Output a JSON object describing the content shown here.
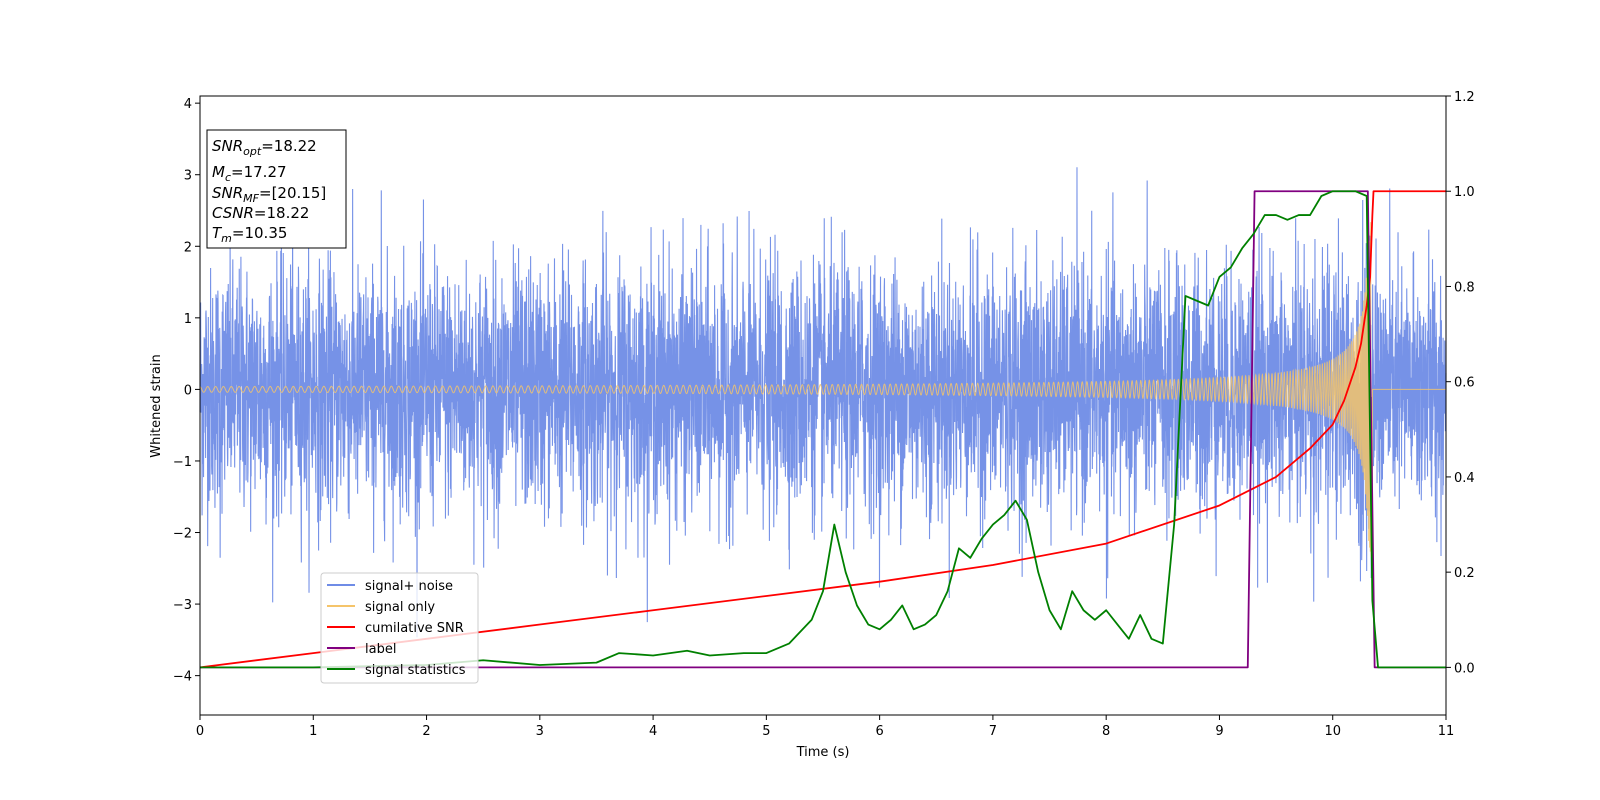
{
  "chart_data": {
    "type": "line",
    "title": "",
    "xlabel": "Time (s)",
    "ylabel": "Whitened strain",
    "xlim": [
      0,
      11
    ],
    "ylim": [
      -4.55,
      4.1
    ],
    "y2lim": [
      -0.1,
      1.2
    ],
    "x_ticks": [
      0,
      1,
      2,
      3,
      4,
      5,
      6,
      7,
      8,
      9,
      10,
      11
    ],
    "y_ticks": [
      -4,
      -3,
      -2,
      -1,
      0,
      1,
      2,
      3,
      4
    ],
    "y2_ticks": [
      0.0,
      0.2,
      0.4,
      0.6,
      0.8,
      1.0,
      1.2
    ],
    "grid": false,
    "legend_placement": "lower-left",
    "series": [
      {
        "name": "signal+ noise",
        "axis": "left",
        "color": "#6f8ce6",
        "kind": "noise",
        "std": 0.85,
        "tail_level": 2.1
      },
      {
        "name": "signal only",
        "axis": "left",
        "color": "#f5c46a",
        "kind": "chirp",
        "merger_time": 10.35,
        "end_amplitude": 1.6
      },
      {
        "name": "cumilative SNR",
        "axis": "right",
        "color": "#ff0000",
        "x": [
          0,
          1,
          2,
          3,
          4,
          5,
          6,
          7,
          8,
          9,
          9.5,
          9.8,
          10.0,
          10.1,
          10.2,
          10.25,
          10.3,
          10.33,
          10.35,
          10.36,
          11
        ],
        "y": [
          0.0,
          0.03,
          0.06,
          0.09,
          0.12,
          0.15,
          0.18,
          0.215,
          0.26,
          0.34,
          0.4,
          0.46,
          0.51,
          0.56,
          0.63,
          0.68,
          0.76,
          0.82,
          0.95,
          1.0,
          1.0
        ]
      },
      {
        "name": "label",
        "axis": "right",
        "color": "#800080",
        "x": [
          0,
          9.25,
          9.31,
          10.31,
          10.37,
          11
        ],
        "y": [
          0.0,
          0.0,
          1.0,
          1.0,
          0.0,
          0.0
        ]
      },
      {
        "name": "signal statistics",
        "axis": "right",
        "color": "#008000",
        "x": [
          0,
          1,
          2,
          2.5,
          3,
          3.5,
          3.7,
          4,
          4.3,
          4.5,
          4.8,
          5,
          5.2,
          5.4,
          5.5,
          5.6,
          5.7,
          5.8,
          5.9,
          6.0,
          6.1,
          6.2,
          6.3,
          6.4,
          6.5,
          6.6,
          6.7,
          6.8,
          6.9,
          7.0,
          7.1,
          7.2,
          7.3,
          7.4,
          7.5,
          7.6,
          7.7,
          7.8,
          7.9,
          8.0,
          8.1,
          8.2,
          8.3,
          8.4,
          8.5,
          8.6,
          8.7,
          8.8,
          8.9,
          9.0,
          9.1,
          9.2,
          9.3,
          9.4,
          9.5,
          9.6,
          9.7,
          9.8,
          9.9,
          10.0,
          10.1,
          10.2,
          10.3,
          10.35,
          10.4,
          10.5,
          11
        ],
        "y": [
          0.0,
          0.0,
          0.005,
          0.015,
          0.005,
          0.01,
          0.03,
          0.025,
          0.035,
          0.025,
          0.03,
          0.03,
          0.05,
          0.1,
          0.16,
          0.3,
          0.2,
          0.13,
          0.09,
          0.08,
          0.1,
          0.13,
          0.08,
          0.09,
          0.11,
          0.16,
          0.25,
          0.23,
          0.27,
          0.3,
          0.32,
          0.35,
          0.31,
          0.2,
          0.12,
          0.08,
          0.16,
          0.12,
          0.1,
          0.12,
          0.09,
          0.06,
          0.11,
          0.06,
          0.05,
          0.3,
          0.78,
          0.77,
          0.76,
          0.82,
          0.84,
          0.88,
          0.91,
          0.95,
          0.95,
          0.94,
          0.95,
          0.95,
          0.99,
          1.0,
          1.0,
          1.0,
          0.99,
          0.14,
          0.0,
          0.0,
          0.0
        ]
      }
    ],
    "info_box": {
      "snr_opt": "=18.22",
      "mc": "=17.27",
      "snr_mf": "=[20.15]",
      "csnr": "=18.22",
      "tm": "=10.35"
    }
  }
}
